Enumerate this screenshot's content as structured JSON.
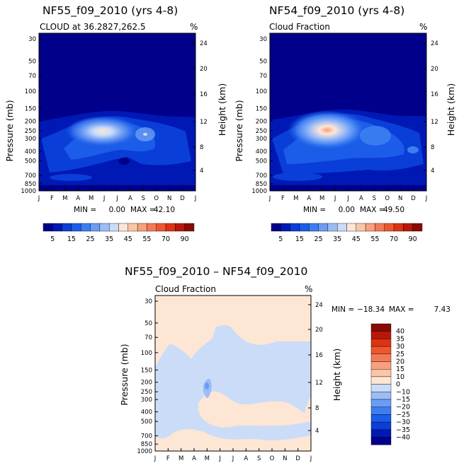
{
  "chart_data": [
    {
      "type": "heatmap",
      "title": "NF55_f09_2010 (yrs 4-8)",
      "subtitle_left": "CLOUD at 36.2827,262.5",
      "subtitle_right": "%",
      "ylabel": "Pressure (mb)",
      "y2label": "Height (km)",
      "xticks": [
        "J",
        "F",
        "M",
        "A",
        "M",
        "J",
        "J",
        "A",
        "S",
        "O",
        "N",
        "D",
        "J"
      ],
      "yticks": [
        "30",
        "50",
        "70",
        "100",
        "150",
        "200",
        "250",
        "300",
        "400",
        "500",
        "700",
        "850",
        "1000"
      ],
      "y2ticks": [
        "24",
        "20",
        "16",
        "12",
        "8",
        "4"
      ],
      "stats": {
        "min_label": "MIN =",
        "min": "0.00",
        "max_label": "MAX =",
        "max": "42.10"
      },
      "colorbar": {
        "labels": [
          "5",
          "15",
          "25",
          "35",
          "45",
          "55",
          "70",
          "90"
        ],
        "colors": [
          "#00008a",
          "#0018b4",
          "#0a3ed8",
          "#1b5ce8",
          "#3c7ef2",
          "#6c9cf4",
          "#9cbcf6",
          "#cbdcf8",
          "#fde6d4",
          "#fbc6a6",
          "#f8a07e",
          "#f47a56",
          "#ee5630",
          "#dd3212",
          "#b8180a",
          "#8a0a04"
        ]
      },
      "peak_value": 42.1
    },
    {
      "type": "heatmap",
      "title": "NF54_f09_2010 (yrs 4-8)",
      "subtitle_left": "Cloud Fraction",
      "subtitle_right": "%",
      "ylabel": "Pressure (mb)",
      "y2label": "Height (km)",
      "xticks": [
        "J",
        "F",
        "M",
        "A",
        "M",
        "J",
        "J",
        "A",
        "S",
        "O",
        "N",
        "D",
        "J"
      ],
      "yticks": [
        "30",
        "50",
        "70",
        "100",
        "150",
        "200",
        "250",
        "300",
        "400",
        "500",
        "700",
        "850",
        "1000"
      ],
      "y2ticks": [
        "24",
        "20",
        "16",
        "12",
        "8",
        "4"
      ],
      "stats": {
        "min_label": "MIN =",
        "min": "0.00",
        "max_label": "MAX =",
        "max": "49.50"
      },
      "colorbar": {
        "labels": [
          "5",
          "15",
          "25",
          "35",
          "45",
          "55",
          "70",
          "90"
        ],
        "colors": [
          "#00008a",
          "#0018b4",
          "#0a3ed8",
          "#1b5ce8",
          "#3c7ef2",
          "#6c9cf4",
          "#9cbcf6",
          "#cbdcf8",
          "#fde6d4",
          "#fbc6a6",
          "#f8a07e",
          "#f47a56",
          "#ee5630",
          "#dd3212",
          "#b8180a",
          "#8a0a04"
        ]
      },
      "peak_value": 49.5
    },
    {
      "type": "heatmap",
      "title": "NF55_f09_2010 – NF54_f09_2010",
      "subtitle_left": "Cloud Fraction",
      "subtitle_right": "%",
      "ylabel": "Pressure (mb)",
      "y2label": "Height (km)",
      "xticks": [
        "J",
        "F",
        "M",
        "A",
        "M",
        "J",
        "J",
        "A",
        "S",
        "O",
        "N",
        "D",
        "J"
      ],
      "yticks": [
        "30",
        "50",
        "70",
        "100",
        "150",
        "200",
        "250",
        "300",
        "400",
        "500",
        "700",
        "850",
        "1000"
      ],
      "y2ticks": [
        "24",
        "20",
        "16",
        "12",
        "8",
        "4"
      ],
      "stats": {
        "min_label": "MIN =",
        "min": "−18.34",
        "max_label": "MAX =",
        "max": "7.43"
      },
      "colorbar": {
        "labels": [
          "40",
          "35",
          "30",
          "25",
          "20",
          "15",
          "10",
          "0",
          "−10",
          "−15",
          "−20",
          "−25",
          "−30",
          "−35",
          "−40"
        ],
        "colors": [
          "#8a0a04",
          "#b8180a",
          "#dd3212",
          "#ee5630",
          "#f47a56",
          "#f8a07e",
          "#fbc6a6",
          "#fde6d4",
          "#cbdcf8",
          "#9cbcf6",
          "#6c9cf4",
          "#3c7ef2",
          "#1b5ce8",
          "#0a3ed8",
          "#0018b4",
          "#00008a"
        ]
      },
      "extreme_values": {
        "min": -18.34,
        "max": 7.43
      }
    }
  ]
}
